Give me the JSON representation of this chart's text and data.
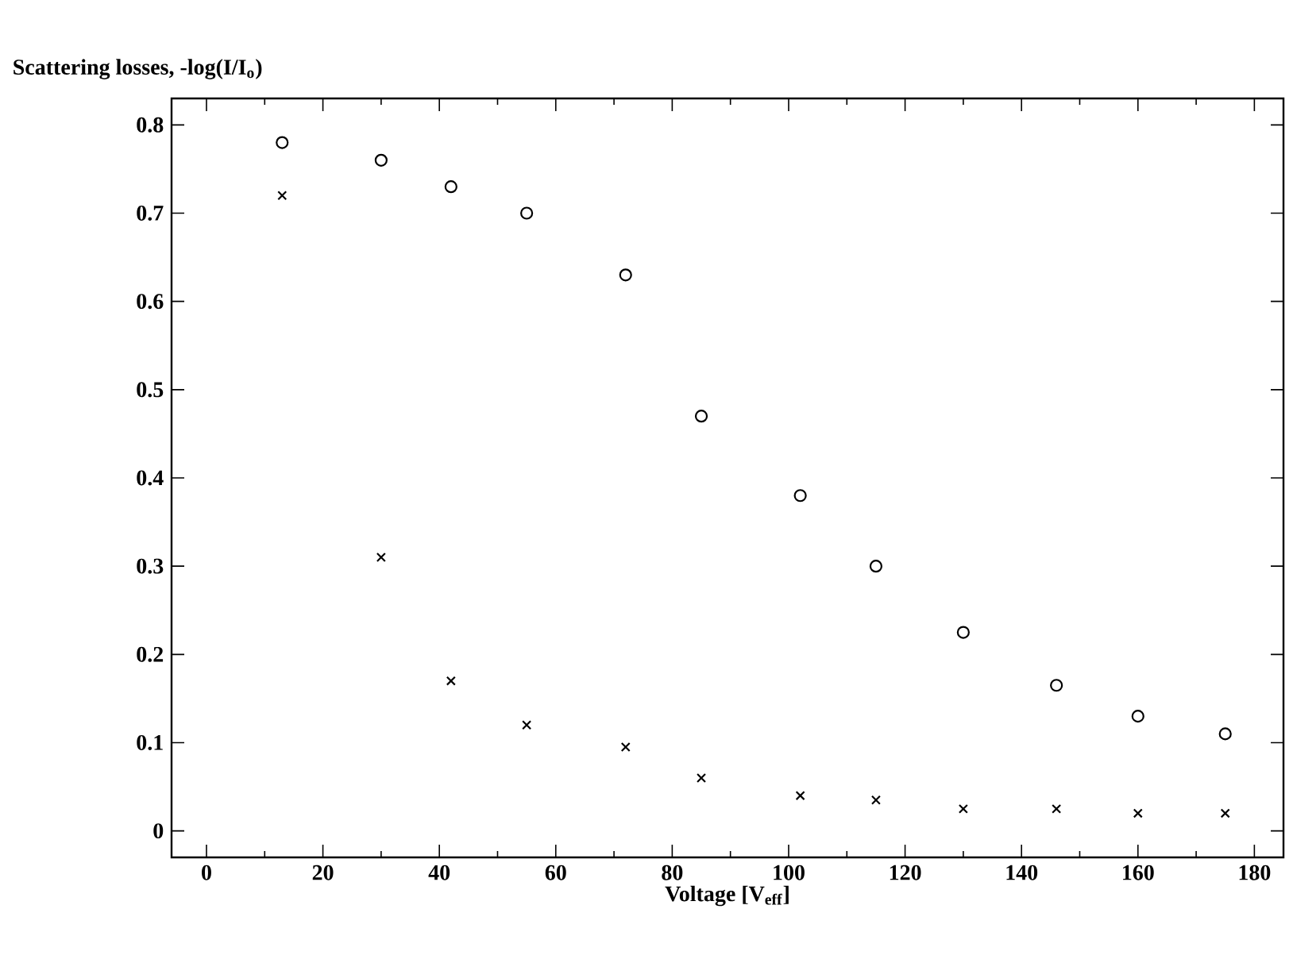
{
  "chart_data": {
    "type": "scatter",
    "ylabel": "Scattering losses, -log(I/I$_{o}$)",
    "xlabel": "Voltage [V$_{eff}$]",
    "series": [
      {
        "marker": "circle",
        "color": "#000000",
        "x": [
          13,
          30,
          42,
          55,
          72,
          85,
          102,
          115,
          130,
          146,
          160,
          175
        ],
        "values": [
          0.78,
          0.76,
          0.73,
          0.7,
          0.63,
          0.47,
          0.38,
          0.3,
          0.225,
          0.165,
          0.13,
          0.11
        ]
      },
      {
        "marker": "cross",
        "color": "#000000",
        "x": [
          13,
          30,
          42,
          55,
          72,
          85,
          102,
          115,
          130,
          146,
          160,
          175
        ],
        "values": [
          0.72,
          0.31,
          0.17,
          0.12,
          0.095,
          0.06,
          0.04,
          0.035,
          0.025,
          0.025,
          0.02,
          0.02
        ]
      }
    ],
    "xlim": [
      -6,
      185
    ],
    "ylim": [
      -0.03,
      0.83
    ],
    "xticks": [
      0,
      20,
      40,
      60,
      80,
      100,
      120,
      140,
      160,
      180
    ],
    "yticks": [
      0,
      0.1,
      0.2,
      0.3,
      0.4,
      0.5,
      0.6,
      0.7,
      0.8
    ]
  }
}
